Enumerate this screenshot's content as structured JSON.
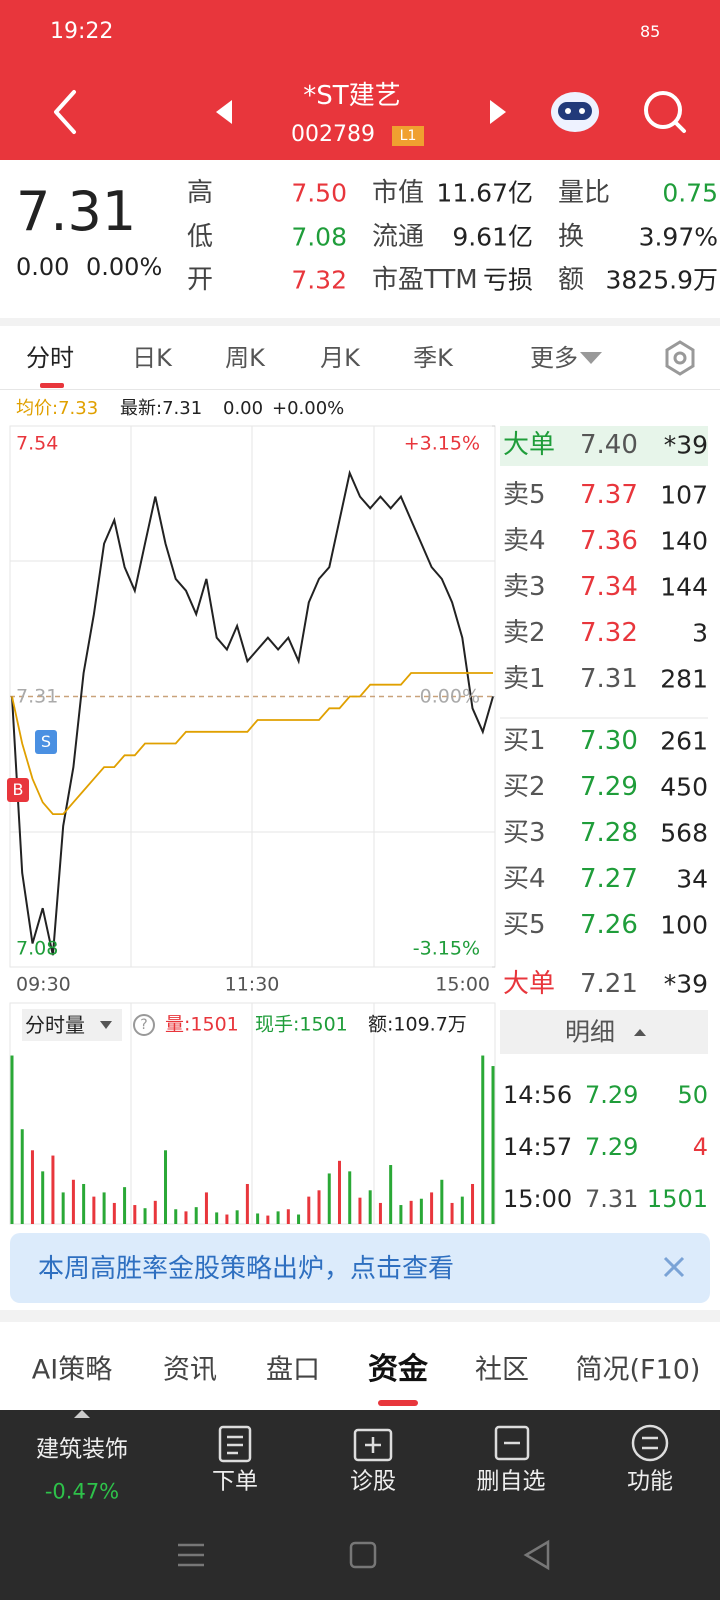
{
  "status_bar": {
    "time": "19:22",
    "battery": "85"
  },
  "header": {
    "title": "*ST建艺",
    "code": "002789",
    "badge": "L1"
  },
  "quote": {
    "price": "7.31",
    "change": "0.00",
    "change_pct": "0.00%",
    "stats": [
      {
        "label": "高",
        "value": "7.50",
        "color": "#e8363c"
      },
      {
        "label": "市值",
        "value": "11.67亿",
        "color": "#222222"
      },
      {
        "label": "量比",
        "value": "0.75",
        "color": "#1f9d3a"
      },
      {
        "label": "低",
        "value": "7.08",
        "color": "#1f9d3a"
      },
      {
        "label": "流通",
        "value": "9.61亿",
        "color": "#222222"
      },
      {
        "label": "换",
        "value": "3.97%",
        "color": "#222222"
      },
      {
        "label": "开",
        "value": "7.32",
        "color": "#e8363c"
      },
      {
        "label": "市盈TTM",
        "value": "亏损",
        "color": "#222222"
      },
      {
        "label": "额",
        "value": "3825.9万",
        "color": "#222222"
      }
    ]
  },
  "tabs": {
    "items": [
      "分时",
      "日K",
      "周K",
      "月K",
      "季K",
      "更多"
    ],
    "active": 0
  },
  "chart_info": {
    "avg": "均价:7.33",
    "latest": "最新:7.31",
    "change": "0.00",
    "change_pct": "+0.00%"
  },
  "chart_data": [
    {
      "type": "line",
      "x_labels": [
        "09:30",
        "11:30",
        "15:00"
      ],
      "ylim": [
        7.08,
        7.54
      ],
      "yticks": [
        7.54,
        7.31,
        7.08
      ],
      "y2lim": [
        -3.15,
        3.15
      ],
      "y2ticks": [
        {
          "value": 3.15,
          "label": "+3.15%"
        },
        {
          "value": 0,
          "label": "0.00%"
        },
        {
          "value": -3.15,
          "label": "-3.15%"
        }
      ],
      "signals": [
        "B",
        "S"
      ],
      "series": [
        {
          "color": "#222222",
          "values": [
            7.31,
            7.16,
            7.1,
            7.13,
            7.09,
            7.2,
            7.25,
            7.33,
            7.38,
            7.44,
            7.46,
            7.42,
            7.4,
            7.44,
            7.48,
            7.44,
            7.41,
            7.4,
            7.38,
            7.41,
            7.36,
            7.35,
            7.37,
            7.34,
            7.35,
            7.36,
            7.35,
            7.36,
            7.34,
            7.39,
            7.41,
            7.42,
            7.46,
            7.5,
            7.48,
            7.47,
            7.48,
            7.47,
            7.48,
            7.46,
            7.44,
            7.42,
            7.41,
            7.39,
            7.36,
            7.3,
            7.28,
            7.31
          ]
        },
        {
          "color": "#e0a000",
          "values": [
            7.31,
            7.27,
            7.24,
            7.22,
            7.21,
            7.21,
            7.22,
            7.23,
            7.24,
            7.25,
            7.25,
            7.26,
            7.26,
            7.27,
            7.27,
            7.27,
            7.27,
            7.28,
            7.28,
            7.28,
            7.28,
            7.28,
            7.28,
            7.28,
            7.29,
            7.29,
            7.29,
            7.29,
            7.29,
            7.29,
            7.29,
            7.3,
            7.3,
            7.31,
            7.31,
            7.32,
            7.32,
            7.32,
            7.32,
            7.33,
            7.33,
            7.33,
            7.33,
            7.33,
            7.33,
            7.33,
            7.33,
            7.33
          ]
        }
      ]
    },
    {
      "type": "bar",
      "title": "分时量",
      "help": "?",
      "stats": [
        {
          "text": "量:1501",
          "color": "#e8363c"
        },
        {
          "text": "现手:1501",
          "color": "#1f9d3a"
        },
        {
          "text": "额:109.7万",
          "color": "#222222"
        }
      ],
      "ylim": [
        0,
        1700
      ],
      "values": [
        1600,
        900,
        700,
        500,
        650,
        300,
        420,
        380,
        260,
        300,
        200,
        350,
        180,
        150,
        220,
        700,
        140,
        120,
        160,
        300,
        110,
        90,
        130,
        380,
        100,
        80,
        120,
        140,
        90,
        260,
        320,
        480,
        600,
        500,
        250,
        320,
        200,
        560,
        180,
        220,
        240,
        300,
        420,
        200,
        260,
        380,
        1600,
        1500
      ],
      "colors": [
        "#2aa836",
        "#2aa836",
        "#e8363c",
        "#2aa836",
        "#e8363c",
        "#2aa836",
        "#e8363c",
        "#2aa836",
        "#e8363c",
        "#2aa836",
        "#e8363c",
        "#2aa836",
        "#e8363c",
        "#2aa836",
        "#e8363c",
        "#2aa836",
        "#2aa836",
        "#e8363c",
        "#2aa836",
        "#e8363c",
        "#2aa836",
        "#e8363c",
        "#2aa836",
        "#e8363c",
        "#2aa836",
        "#e8363c",
        "#2aa836",
        "#e8363c",
        "#2aa836",
        "#e8363c",
        "#e8363c",
        "#2aa836",
        "#e8363c",
        "#2aa836",
        "#e8363c",
        "#2aa836",
        "#e8363c",
        "#2aa836",
        "#2aa836",
        "#e8363c",
        "#2aa836",
        "#e8363c",
        "#2aa836",
        "#e8363c",
        "#2aa836",
        "#e8363c",
        "#2aa836",
        "#2aa836"
      ]
    }
  ],
  "order_book": {
    "big_top": {
      "label": "大单",
      "price": "7.40",
      "volume": "*39"
    },
    "rows": [
      {
        "label": "卖5",
        "price": "7.37",
        "volume": "107",
        "color": "#e8363c"
      },
      {
        "label": "卖4",
        "price": "7.36",
        "volume": "140",
        "color": "#e8363c"
      },
      {
        "label": "卖3",
        "price": "7.34",
        "volume": "144",
        "color": "#e8363c"
      },
      {
        "label": "卖2",
        "price": "7.32",
        "volume": "3",
        "color": "#e8363c"
      },
      {
        "label": "卖1",
        "price": "7.31",
        "volume": "281",
        "color": "#555555"
      },
      {
        "label": "买1",
        "price": "7.30",
        "volume": "261",
        "color": "#1f9d3a"
      },
      {
        "label": "买2",
        "price": "7.29",
        "volume": "450",
        "color": "#1f9d3a"
      },
      {
        "label": "买3",
        "price": "7.28",
        "volume": "568",
        "color": "#1f9d3a"
      },
      {
        "label": "买4",
        "price": "7.27",
        "volume": "34",
        "color": "#1f9d3a"
      },
      {
        "label": "买5",
        "price": "7.26",
        "volume": "100",
        "color": "#1f9d3a"
      }
    ],
    "big_bottom": {
      "label": "大单",
      "price": "7.21",
      "volume": "*39"
    },
    "detail": "明细",
    "trades": [
      {
        "time": "14:56",
        "price": "7.29",
        "volume": "50",
        "price_color": "#1f9d3a",
        "volume_color": "#1f9d3a"
      },
      {
        "time": "14:57",
        "price": "7.29",
        "volume": "4",
        "price_color": "#1f9d3a",
        "volume_color": "#e8363c"
      },
      {
        "time": "15:00",
        "price": "7.31",
        "volume": "1501",
        "price_color": "#555555",
        "volume_color": "#1f9d3a"
      }
    ]
  },
  "banner": "本周高胜率金股策略出炉，点击查看",
  "bottom_tabs": {
    "items": [
      "AI策略",
      "资讯",
      "盘口",
      "资金",
      "社区",
      "简况(F10)"
    ],
    "active": 3
  },
  "nav": {
    "sector": "建筑装饰",
    "sector_change": "-0.47%",
    "items": [
      "下单",
      "诊股",
      "删自选",
      "功能"
    ]
  }
}
